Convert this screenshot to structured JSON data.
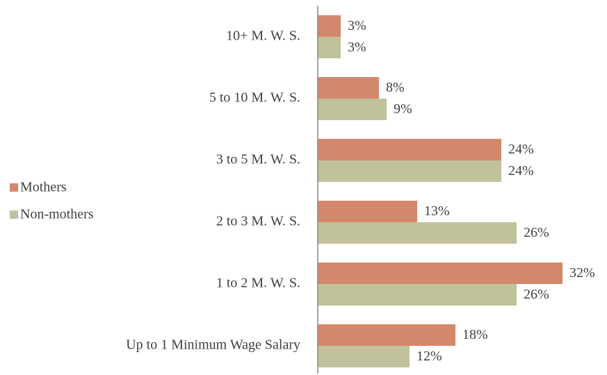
{
  "chart_data": {
    "type": "hbar",
    "categories": [
      "10+ M. W. S.",
      "5 to 10 M. W. S.",
      "3 to 5 M. W. S.",
      "2 to 3 M. W. S.",
      "1 to 2 M. W. S.",
      "Up to 1 Minimum Wage Salary"
    ],
    "series": [
      {
        "name": "Mothers",
        "color": "#d4886b",
        "values": [
          3,
          8,
          24,
          13,
          32,
          18
        ],
        "value_labels": [
          "3%",
          "8%",
          "24%",
          "13%",
          "32%",
          "18%"
        ]
      },
      {
        "name": "Non-mothers",
        "color": "#c1c29c",
        "values": [
          3,
          9,
          24,
          26,
          26,
          12
        ],
        "value_labels": [
          "3%",
          "9%",
          "24%",
          "26%",
          "26%",
          "12%"
        ]
      }
    ],
    "legend": "left"
  }
}
